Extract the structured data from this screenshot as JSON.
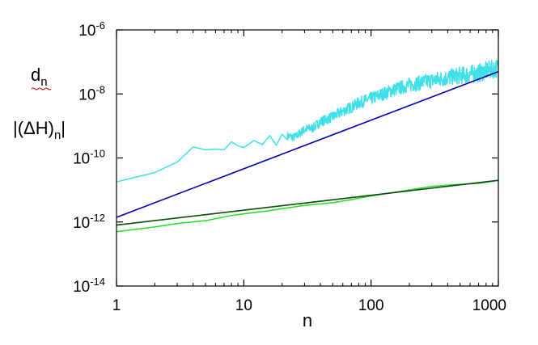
{
  "chart_data": {
    "type": "line",
    "title": "",
    "xlabel": "n",
    "ylabel": [
      "d_n",
      "|(ΔH)_n|"
    ],
    "x_scale": "log",
    "y_scale": "log",
    "xlim": [
      1,
      1000
    ],
    "ylim": [
      1e-14,
      1e-06
    ],
    "grid": false,
    "legend": "none",
    "x_ticks": [
      {
        "value": 1,
        "label": "1"
      },
      {
        "value": 10,
        "label": "10"
      },
      {
        "value": 100,
        "label": "100"
      },
      {
        "value": 1000,
        "label": "1000"
      }
    ],
    "y_ticks": [
      {
        "value": 1e-14,
        "base": "10",
        "exp": "-14"
      },
      {
        "value": 1e-12,
        "base": "10",
        "exp": "-12"
      },
      {
        "value": 1e-10,
        "base": "10",
        "exp": "-10"
      },
      {
        "value": 1e-08,
        "base": "10",
        "exp": "-8"
      },
      {
        "value": 1e-06,
        "base": "10",
        "exp": "-6"
      }
    ],
    "series": [
      {
        "color": "#40e0e8",
        "style": "noisy",
        "x": [
          1,
          2,
          3,
          4,
          5,
          6,
          7,
          8,
          9,
          10,
          12,
          14,
          16,
          18,
          20,
          25,
          30,
          35,
          40,
          50,
          60,
          70,
          80,
          100,
          150,
          200,
          300,
          500,
          700,
          1000
        ],
        "y": [
          1.8e-11,
          3.5e-11,
          7.5e-11,
          2.2e-10,
          1.8e-10,
          1.9e-10,
          1.8e-10,
          3.2e-10,
          2.4e-10,
          2.1e-10,
          3.5e-10,
          2.6e-10,
          5e-10,
          2.5e-10,
          5.5e-10,
          4.5e-10,
          8e-10,
          9e-10,
          1.4e-09,
          2e-09,
          3e-09,
          4e-09,
          5.5e-09,
          7.5e-09,
          1.4e-08,
          2e-08,
          2.8e-08,
          4e-08,
          4.8e-08,
          7e-08
        ]
      },
      {
        "color": "#0000aa",
        "style": "fit",
        "x": [
          1,
          1000
        ],
        "y": [
          1.4e-12,
          5e-08
        ]
      },
      {
        "color": "#22dd22",
        "style": "data",
        "x": [
          1,
          2,
          3,
          5,
          8,
          10,
          15,
          20,
          30,
          50,
          70,
          100,
          200,
          300,
          500,
          700,
          1000
        ],
        "y": [
          5e-13,
          7e-13,
          9e-13,
          1.1e-12,
          1.6e-12,
          1.8e-12,
          2.2e-12,
          2.6e-12,
          3.3e-12,
          4e-12,
          5e-12,
          6.5e-12,
          1e-11,
          1.3e-11,
          1.5e-11,
          1.6e-11,
          2e-11
        ]
      },
      {
        "color": "#0a4a0a",
        "style": "fit",
        "x": [
          1,
          1000
        ],
        "y": [
          8e-13,
          2e-11
        ]
      }
    ]
  }
}
